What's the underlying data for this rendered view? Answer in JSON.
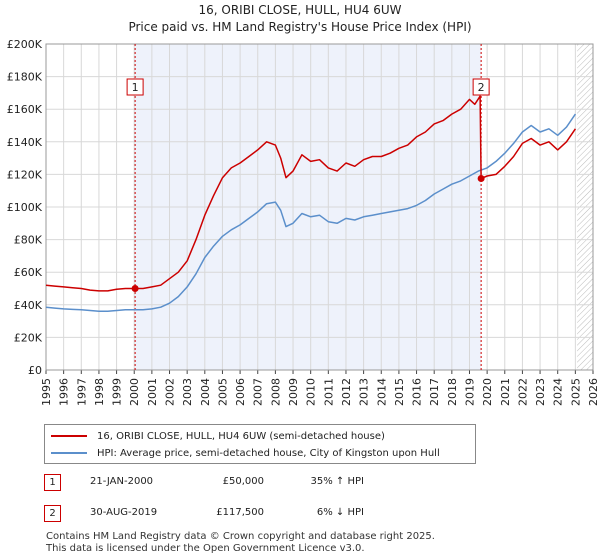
{
  "title": "16, ORIBI CLOSE, HULL, HU4 6UW",
  "subtitle": "Price paid vs. HM Land Registry's House Price Index (HPI)",
  "colors": {
    "property": "#cc0000",
    "hpi": "#5b8fcb",
    "band": "#eef2fb",
    "grid": "#d8d8d8"
  },
  "chart_data": {
    "type": "line",
    "title": "16, ORIBI CLOSE, HULL, HU4 6UW",
    "xlabel": "",
    "ylabel": "",
    "xlim": [
      1995,
      2026
    ],
    "ylim": [
      0,
      200000
    ],
    "yticks": [
      0,
      20000,
      40000,
      60000,
      80000,
      100000,
      120000,
      140000,
      160000,
      180000,
      200000
    ],
    "ytick_labels": [
      "£0",
      "£20K",
      "£40K",
      "£60K",
      "£80K",
      "£100K",
      "£120K",
      "£140K",
      "£160K",
      "£180K",
      "£200K"
    ],
    "xticks": [
      1995,
      1996,
      1997,
      1998,
      1999,
      2000,
      2001,
      2002,
      2003,
      2004,
      2005,
      2006,
      2007,
      2008,
      2009,
      2010,
      2011,
      2012,
      2013,
      2014,
      2015,
      2016,
      2017,
      2018,
      2019,
      2020,
      2021,
      2022,
      2023,
      2024,
      2025,
      2026
    ],
    "shaded_region": [
      2000.05,
      2019.66
    ],
    "hatched_region": [
      2025.1,
      2026
    ],
    "series": [
      {
        "name": "16, ORIBI CLOSE, HULL, HU4 6UW (semi-detached house)",
        "x": [
          1995,
          1995.5,
          1996,
          1996.5,
          1997,
          1997.5,
          1998,
          1998.5,
          1999,
          1999.5,
          2000.05,
          2000.5,
          2001,
          2001.5,
          2002,
          2002.5,
          2003,
          2003.5,
          2004,
          2004.5,
          2005,
          2005.5,
          2006,
          2006.5,
          2007,
          2007.5,
          2008,
          2008.3,
          2008.6,
          2009,
          2009.5,
          2010,
          2010.5,
          2011,
          2011.5,
          2012,
          2012.5,
          2013,
          2013.5,
          2014,
          2014.5,
          2015,
          2015.5,
          2016,
          2016.5,
          2017,
          2017.5,
          2018,
          2018.5,
          2019,
          2019.3,
          2019.6,
          2019.66,
          2020,
          2020.5,
          2021,
          2021.5,
          2022,
          2022.5,
          2023,
          2023.5,
          2024,
          2024.5,
          2025
        ],
        "values": [
          52000,
          51500,
          51000,
          50500,
          50000,
          49000,
          48500,
          48500,
          49500,
          50000,
          50000,
          50000,
          51000,
          52000,
          56000,
          60000,
          67000,
          80000,
          95000,
          107000,
          118000,
          124000,
          127000,
          131000,
          135000,
          140000,
          138000,
          130000,
          118000,
          122000,
          132000,
          128000,
          129000,
          124000,
          122000,
          127000,
          125000,
          129000,
          131000,
          131000,
          133000,
          136000,
          138000,
          143000,
          146000,
          151000,
          153000,
          157000,
          160000,
          166000,
          163000,
          168000,
          117500,
          119000,
          120000,
          125000,
          131000,
          139000,
          142000,
          138000,
          140000,
          135000,
          140000,
          148000
        ]
      },
      {
        "name": "HPI: Average price, semi-detached house, City of Kingston upon Hull",
        "x": [
          1995,
          1995.5,
          1996,
          1996.5,
          1997,
          1997.5,
          1998,
          1998.5,
          1999,
          1999.5,
          2000,
          2000.5,
          2001,
          2001.5,
          2002,
          2002.5,
          2003,
          2003.5,
          2004,
          2004.5,
          2005,
          2005.5,
          2006,
          2006.5,
          2007,
          2007.5,
          2008,
          2008.3,
          2008.6,
          2009,
          2009.5,
          2010,
          2010.5,
          2011,
          2011.5,
          2012,
          2012.5,
          2013,
          2013.5,
          2014,
          2014.5,
          2015,
          2015.5,
          2016,
          2016.5,
          2017,
          2017.5,
          2018,
          2018.5,
          2019,
          2019.5,
          2020,
          2020.5,
          2021,
          2021.5,
          2022,
          2022.5,
          2023,
          2023.5,
          2024,
          2024.5,
          2025
        ],
        "values": [
          38500,
          38000,
          37500,
          37200,
          37000,
          36500,
          36000,
          36000,
          36500,
          37000,
          37000,
          37000,
          37500,
          38500,
          41000,
          45000,
          51000,
          59000,
          69000,
          76000,
          82000,
          86000,
          89000,
          93000,
          97000,
          102000,
          103000,
          98000,
          88000,
          90000,
          96000,
          94000,
          95000,
          91000,
          90000,
          93000,
          92000,
          94000,
          95000,
          96000,
          97000,
          98000,
          99000,
          101000,
          104000,
          108000,
          111000,
          114000,
          116000,
          119000,
          122000,
          124000,
          128000,
          133000,
          139000,
          146000,
          150000,
          146000,
          148000,
          144000,
          149000,
          157000
        ]
      }
    ],
    "annotations": [
      {
        "label": "1",
        "x": 2000.05,
        "y": 50000
      },
      {
        "label": "2",
        "x": 2019.66,
        "y": 117500
      }
    ]
  },
  "legend": {
    "property_label": "16, ORIBI CLOSE, HULL, HU4 6UW (semi-detached house)",
    "hpi_label": "HPI: Average price, semi-detached house, City of Kingston upon Hull"
  },
  "sales": [
    {
      "num": "1",
      "date": "21-JAN-2000",
      "price": "£50,000",
      "hpi": "35% ↑ HPI"
    },
    {
      "num": "2",
      "date": "30-AUG-2019",
      "price": "£117,500",
      "hpi": "6% ↓ HPI"
    }
  ],
  "footer": {
    "line1": "Contains HM Land Registry data © Crown copyright and database right 2025.",
    "line2": "This data is licensed under the Open Government Licence v3.0."
  }
}
